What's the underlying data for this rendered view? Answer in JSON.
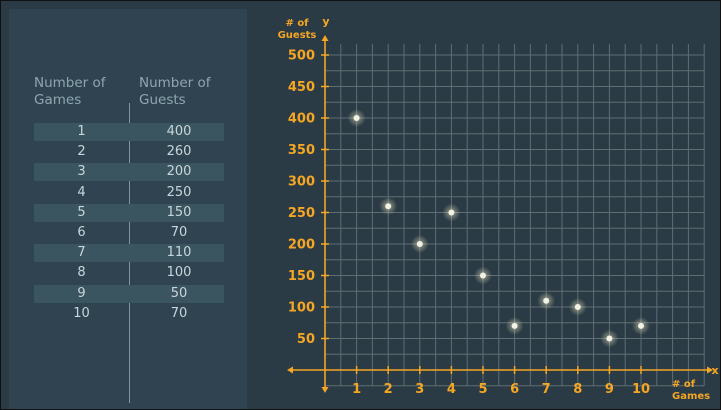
{
  "table": {
    "header_games": "Number of\nGames",
    "header_guests": "Number of\nGuests"
  },
  "chart_data": {
    "type": "scatter",
    "title": "",
    "xlabel": "# of\nGames",
    "ylabel": "# of\nGuests",
    "x_axis_letter": "x",
    "y_axis_letter": "y",
    "x": [
      1,
      2,
      3,
      4,
      5,
      6,
      7,
      8,
      9,
      10
    ],
    "y": [
      400,
      260,
      200,
      250,
      150,
      70,
      110,
      100,
      50,
      70
    ],
    "xlim": [
      0,
      10
    ],
    "ylim": [
      0,
      500
    ],
    "x_ticks": [
      "1",
      "2",
      "3",
      "4",
      "5",
      "6",
      "7",
      "8",
      "9",
      "10"
    ],
    "y_ticks": [
      "50",
      "100",
      "150",
      "200",
      "250",
      "300",
      "350",
      "400",
      "450",
      "500"
    ],
    "grid": true,
    "colors": {
      "axis": "#f5a623",
      "grid": "#5f6e72",
      "point": "#f2f2e4"
    }
  }
}
